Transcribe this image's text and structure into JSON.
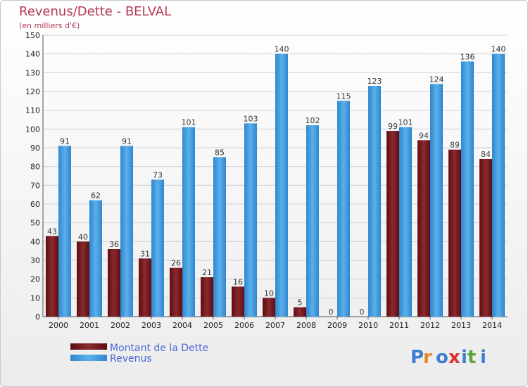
{
  "chart_data": {
    "type": "bar",
    "title": "Revenus/Dette - BELVAL",
    "subtitle": "(en milliers d'€)",
    "categories": [
      "2000",
      "2001",
      "2002",
      "2003",
      "2004",
      "2005",
      "2006",
      "2007",
      "2008",
      "2009",
      "2010",
      "2011",
      "2012",
      "2013",
      "2014"
    ],
    "series": [
      {
        "name": "Montant de la Dette",
        "color": "#7a1a1e",
        "values": [
          43,
          40,
          36,
          31,
          26,
          21,
          16,
          10,
          5,
          0,
          0,
          99,
          94,
          89,
          84
        ]
      },
      {
        "name": "Revenus",
        "color": "#4da3e3",
        "values": [
          91,
          62,
          91,
          73,
          101,
          85,
          103,
          140,
          102,
          115,
          123,
          101,
          124,
          136,
          140
        ]
      }
    ],
    "ylim": [
      0,
      150
    ],
    "yticks": [
      0,
      10,
      20,
      30,
      40,
      50,
      60,
      70,
      80,
      90,
      100,
      110,
      120,
      130,
      140,
      150
    ],
    "grid": true,
    "legend": "bottom-left",
    "logo": "Proxiti"
  }
}
